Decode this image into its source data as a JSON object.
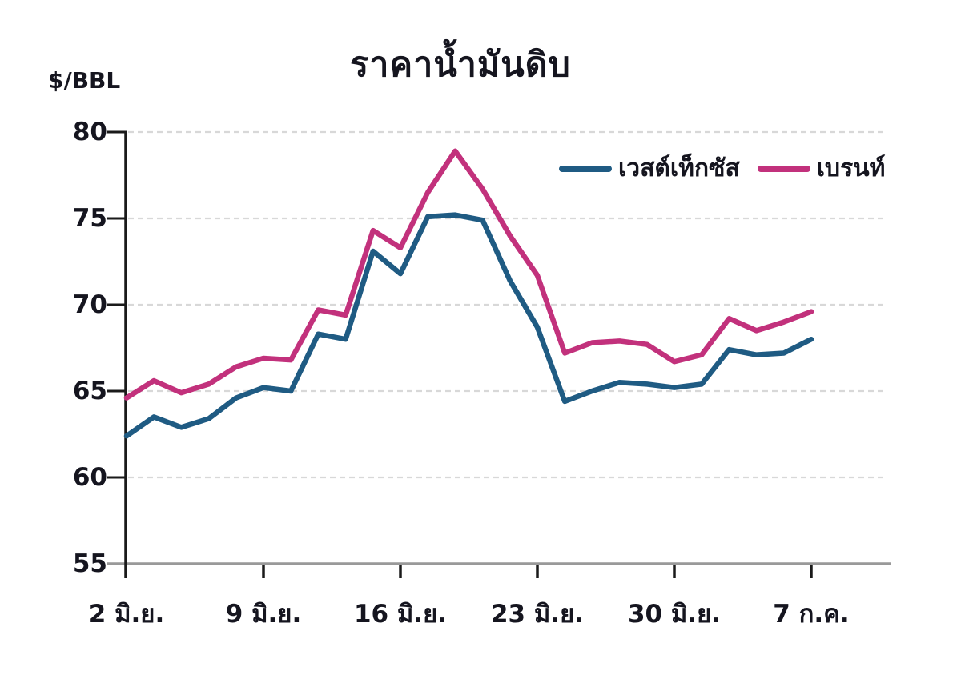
{
  "chart_data": {
    "type": "line",
    "title": "ราคาน้ำมันดิบ",
    "ylabel": "$/BBL",
    "xlabel": "",
    "ylim": [
      55,
      80
    ],
    "yticks": [
      55,
      60,
      65,
      70,
      75,
      80
    ],
    "xtick_labels": [
      "2 มิ.ย.",
      "9 มิ.ย.",
      "16 มิ.ย.",
      "23 มิ.ย.",
      "30 มิ.ย.",
      "7 ก.ค."
    ],
    "categories": [
      "2 มิ.ย.",
      "3 มิ.ย.",
      "4 มิ.ย.",
      "5 มิ.ย.",
      "6 มิ.ย.",
      "9 มิ.ย.",
      "10 มิ.ย.",
      "11 มิ.ย.",
      "12 มิ.ย.",
      "13 มิ.ย.",
      "16 มิ.ย.",
      "17 มิ.ย.",
      "18 มิ.ย.",
      "19 มิ.ย.",
      "20 มิ.ย.",
      "23 มิ.ย.",
      "24 มิ.ย.",
      "25 มิ.ย.",
      "26 มิ.ย.",
      "27 มิ.ย.",
      "30 มิ.ย.",
      "1 ก.ค.",
      "2 ก.ค.",
      "3 ก.ค.",
      "4 ก.ค.",
      "7 ก.ค."
    ],
    "series": [
      {
        "name": "เวสต์เท็กซัส",
        "color": "#1F5B83",
        "values": [
          62.4,
          63.5,
          62.9,
          63.4,
          64.6,
          65.2,
          65.0,
          68.3,
          68.0,
          73.1,
          71.8,
          75.1,
          75.2,
          74.9,
          71.4,
          68.7,
          64.4,
          65.0,
          65.5,
          65.4,
          65.2,
          65.4,
          67.4,
          67.1,
          67.2,
          68.0
        ]
      },
      {
        "name": "เบรนท์",
        "color": "#C2317C",
        "values": [
          64.6,
          65.6,
          64.9,
          65.4,
          66.4,
          66.9,
          66.8,
          69.7,
          69.4,
          74.3,
          73.3,
          76.5,
          78.9,
          76.7,
          74.0,
          71.7,
          67.2,
          67.8,
          67.9,
          67.7,
          66.7,
          67.1,
          69.2,
          68.5,
          69.0,
          69.6
        ]
      }
    ],
    "grid": "horizontal-dashed",
    "legend_position": "inside-top-right",
    "colors": {
      "text": "#15151F",
      "axis": "#1A1A1A",
      "gridline": "#D8D8D8",
      "baseline": "#999999",
      "background": "#FFFFFF"
    }
  }
}
